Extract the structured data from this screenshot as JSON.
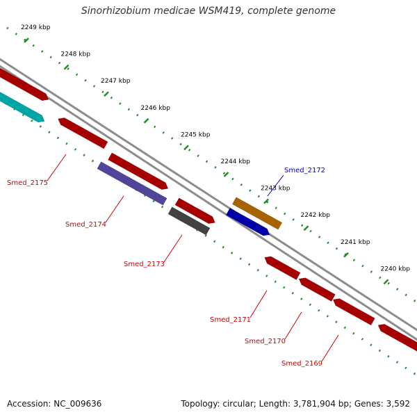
{
  "title": "Sinorhizobium medicae WSM419, complete genome",
  "footer": {
    "accession": "Accession: NC_009636",
    "summary": "Topology: circular; Length: 3,781,904 bp; Genes: 3,592"
  },
  "colors": {
    "backbone": "#8c8c8c",
    "tick": "#228b22",
    "red": "#ff0000",
    "cyan": "#00ffff",
    "purple": "#7b68ee",
    "gray": "#666666",
    "orange": "#ff9900",
    "blue": "#0000ff",
    "label_red": "#cc0000",
    "label_blue": "#0000cc"
  },
  "scale": {
    "unit": "kbp",
    "labels": [
      "2249 kbp",
      "2248 kbp",
      "2247 kbp",
      "2246 kbp",
      "2245 kbp",
      "2244 kbp",
      "2243 kbp",
      "2242 kbp",
      "2241 kbp",
      "2240 kbp"
    ]
  },
  "features": [
    {
      "gene": "",
      "color": "red",
      "track": "forward-outer",
      "labeled": false
    },
    {
      "gene": "",
      "color": "red",
      "track": "forward-outer",
      "labeled": false
    },
    {
      "gene": "Smed_2175",
      "color": "red",
      "track": "forward-outer",
      "labeled": true
    },
    {
      "gene": "",
      "color": "cyan",
      "track": "forward-inner",
      "labeled": false
    },
    {
      "gene": "Smed_2174",
      "color": "purple",
      "track": "forward-inner",
      "labeled": true
    },
    {
      "gene": "",
      "color": "red",
      "track": "forward-outer",
      "labeled": false
    },
    {
      "gene": "Smed_2173",
      "color": "gray",
      "track": "forward-inner",
      "labeled": true
    },
    {
      "gene": "",
      "color": "orange",
      "track": "reverse-outer",
      "labeled": false
    },
    {
      "gene": "Smed_2172",
      "color": "blue",
      "track": "reverse-inner",
      "labeled": true
    },
    {
      "gene": "Smed_2171",
      "color": "red",
      "track": "forward-outer",
      "labeled": true
    },
    {
      "gene": "Smed_2170",
      "color": "red",
      "track": "forward-outer",
      "labeled": true
    },
    {
      "gene": "Smed_2169",
      "color": "red",
      "track": "forward-outer",
      "labeled": true
    },
    {
      "gene": "",
      "color": "red",
      "track": "forward-outer",
      "labeled": false
    }
  ]
}
